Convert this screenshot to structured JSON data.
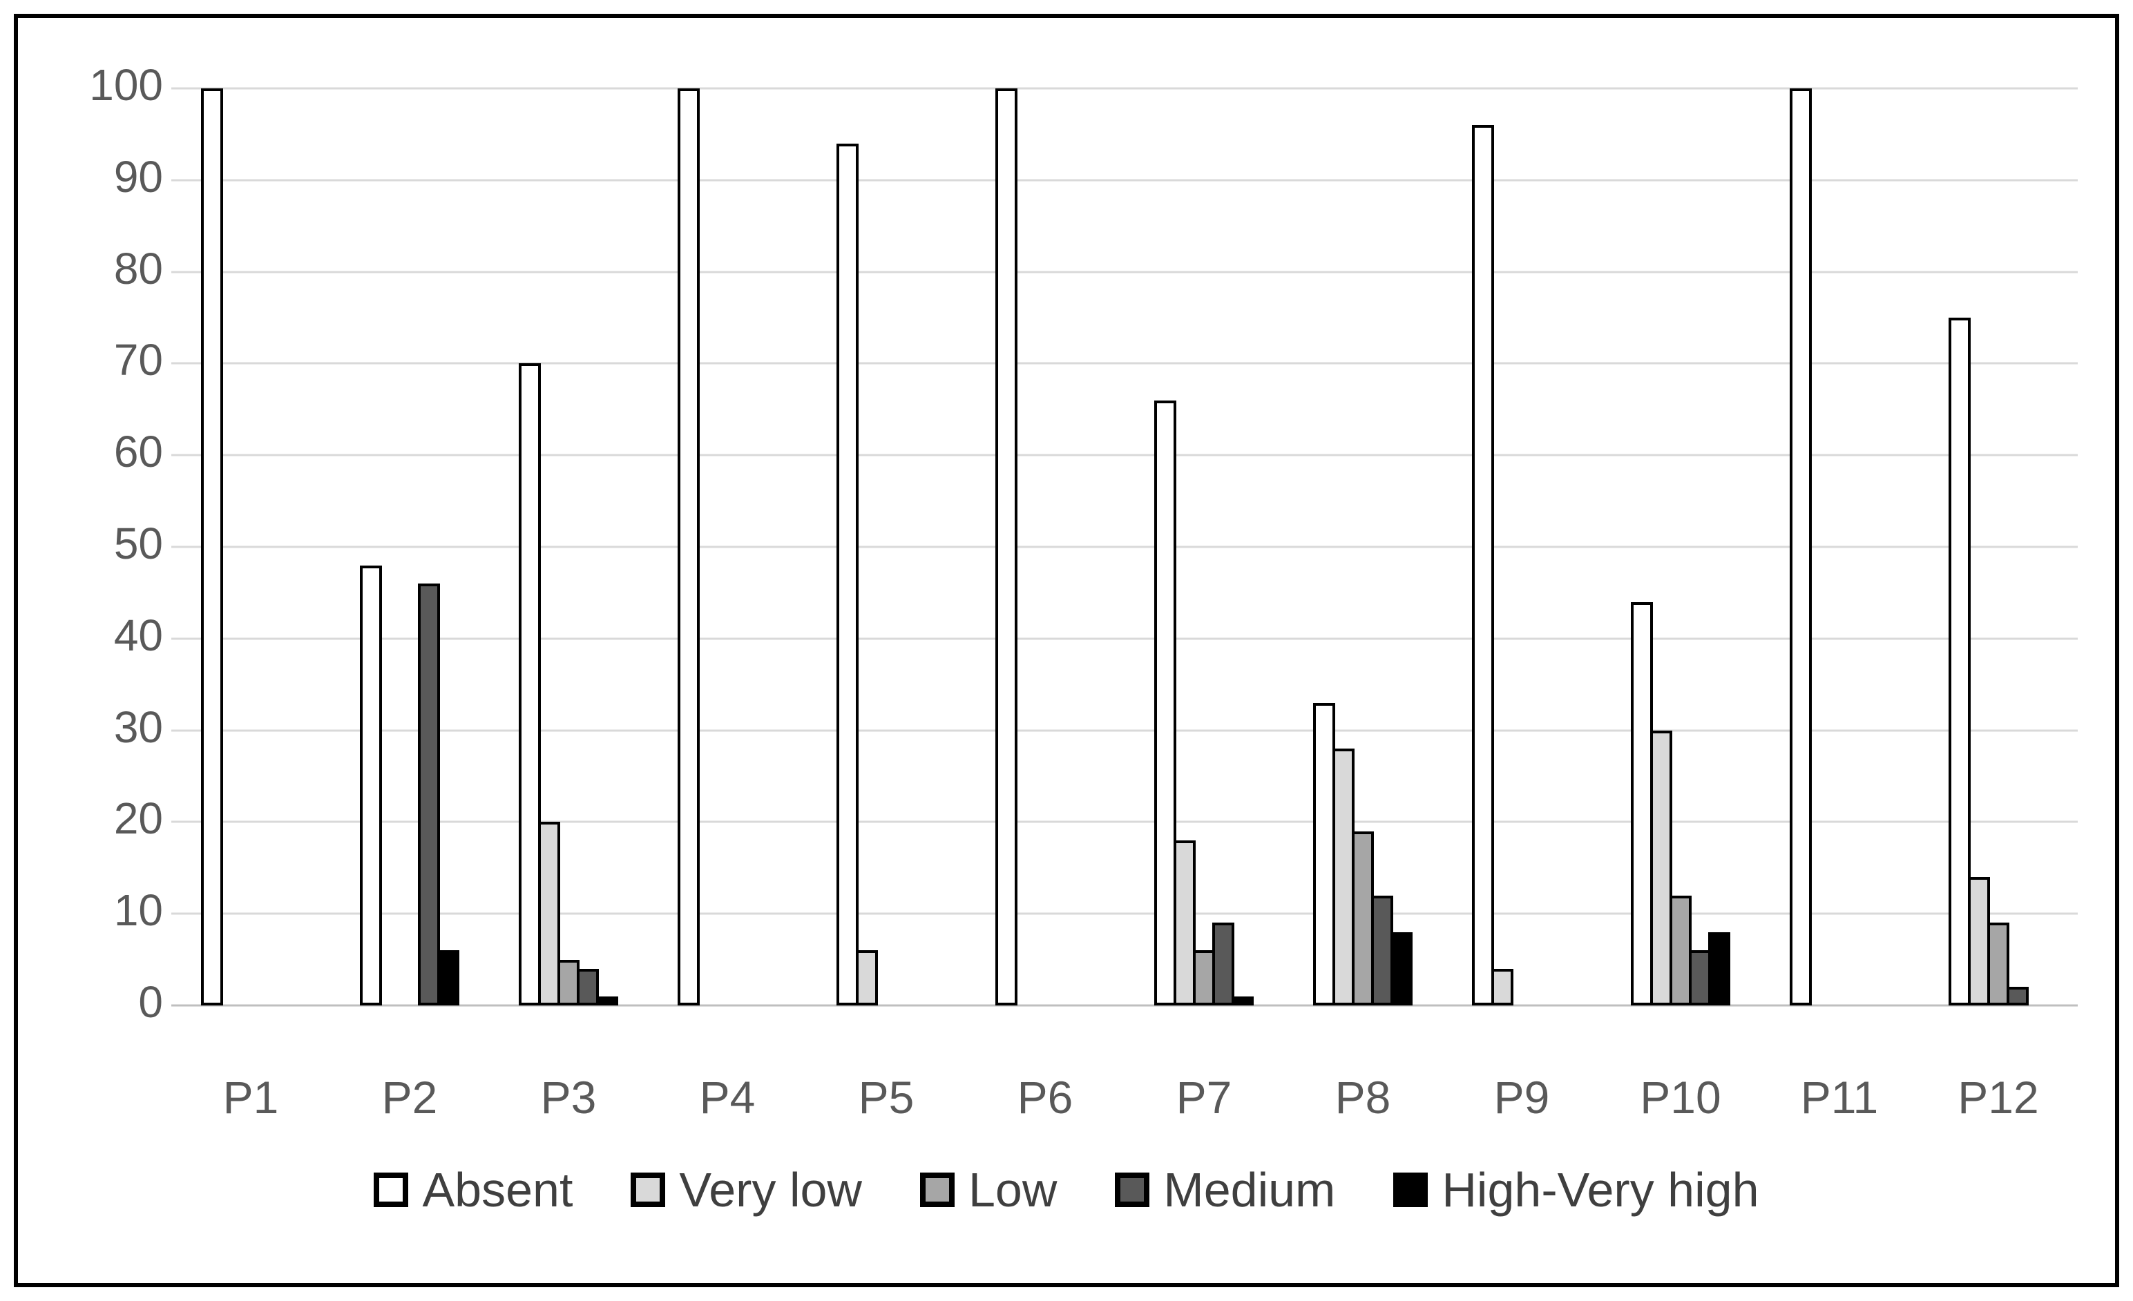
{
  "figure": {
    "background": "#ffffff",
    "border_color": "#000000"
  },
  "chart_data": {
    "type": "bar",
    "title": "",
    "categories": [
      "P1",
      "P2",
      "P3",
      "P4",
      "P5",
      "P6",
      "P7",
      "P8",
      "P9",
      "P10",
      "P11",
      "P12"
    ],
    "series": [
      {
        "name": "Absent",
        "color": "#ffffff",
        "values": [
          100,
          48,
          70,
          100,
          94,
          100,
          66,
          33,
          96,
          44,
          100,
          75
        ]
      },
      {
        "name": "Very low",
        "color": "#d9d9d9",
        "values": [
          0,
          0,
          20,
          0,
          6,
          0,
          18,
          28,
          4,
          30,
          0,
          14
        ]
      },
      {
        "name": "Low",
        "color": "#a6a6a6",
        "values": [
          0,
          0,
          5,
          0,
          0,
          0,
          6,
          19,
          0,
          12,
          0,
          9
        ]
      },
      {
        "name": "Medium",
        "color": "#595959",
        "values": [
          0,
          46,
          4,
          0,
          0,
          0,
          9,
          12,
          0,
          6,
          0,
          2
        ]
      },
      {
        "name": "High-Very high",
        "color": "#000000",
        "values": [
          0,
          6,
          1,
          0,
          0,
          0,
          1,
          8,
          0,
          8,
          0,
          0
        ]
      }
    ],
    "xlabel": "",
    "ylabel": "",
    "y_axis": {
      "min": 0,
      "max": 100,
      "step": 10,
      "tick_labels": [
        "0",
        "10",
        "20",
        "30",
        "40",
        "50",
        "60",
        "70",
        "80",
        "90",
        "100"
      ]
    },
    "grid": true,
    "legend_position": "bottom",
    "bar_outline_color": "#000000",
    "gridline_color": "#d9d9d9",
    "axis_line_color": "#bfbfbf",
    "tick_label_color": "#595959",
    "legend_text_color": "#3f3f3f"
  }
}
